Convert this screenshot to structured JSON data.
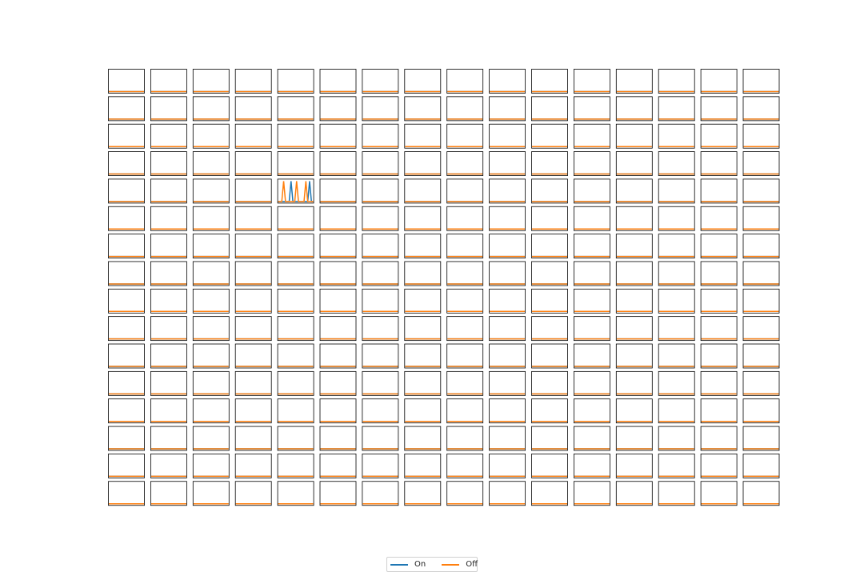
{
  "chart_data": {
    "type": "line",
    "layout": "small-multiples",
    "rows": 16,
    "cols": 16,
    "axes_visible": false,
    "x": [
      0,
      1,
      2,
      3,
      4,
      5,
      6,
      7,
      8,
      9,
      10,
      11,
      12,
      13,
      14,
      15,
      16,
      17,
      18,
      19
    ],
    "ylim": [
      0,
      1
    ],
    "legend": {
      "placement": "bottom-center",
      "entries": [
        "On",
        "Off"
      ]
    },
    "series": [
      {
        "name": "On",
        "color": "#1f77b4"
      },
      {
        "name": "Off",
        "color": "#ff7f0e"
      }
    ],
    "default_panel": {
      "On": [
        0,
        0,
        0,
        0,
        0,
        0,
        0,
        0,
        0,
        0,
        0,
        0,
        0,
        0,
        0,
        0,
        0,
        0,
        0,
        0
      ],
      "Off": [
        0,
        0,
        0,
        0,
        0,
        0,
        0,
        0,
        0,
        0,
        0,
        0,
        0,
        0,
        0,
        0,
        0,
        0,
        0,
        0
      ]
    },
    "special_panels": [
      {
        "row": 4,
        "col": 4,
        "On": [
          0,
          0,
          0,
          0,
          0,
          0,
          0,
          1,
          0,
          0,
          0,
          0,
          0,
          0,
          0,
          0,
          0,
          1,
          0,
          0
        ],
        "Off": [
          0,
          0,
          0,
          1,
          0,
          0,
          0,
          0,
          0,
          0,
          1,
          0,
          0,
          0,
          0,
          1,
          0,
          0,
          0,
          0
        ]
      }
    ]
  }
}
